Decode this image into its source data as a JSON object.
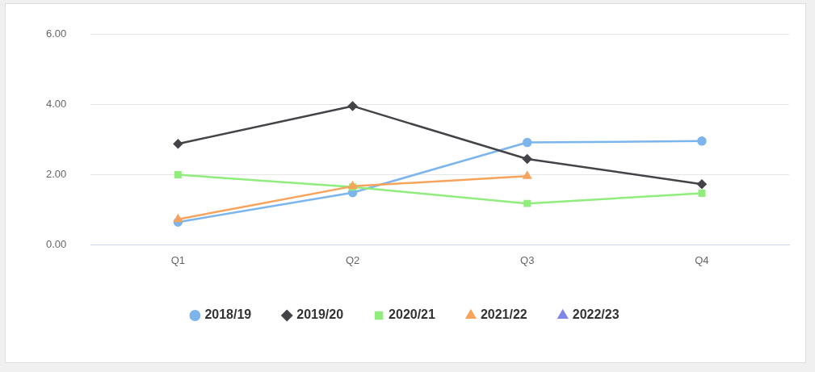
{
  "chart_data": {
    "type": "line",
    "categories": [
      "Q1",
      "Q2",
      "Q3",
      "Q4"
    ],
    "series": [
      {
        "name": "2018/19",
        "color": "#7cb5ec",
        "marker": "circle",
        "values": [
          0.65,
          1.49,
          2.92,
          2.96
        ]
      },
      {
        "name": "2019/20",
        "color": "#434348",
        "marker": "diamond",
        "values": [
          2.88,
          3.96,
          2.45,
          1.73
        ]
      },
      {
        "name": "2020/21",
        "color": "#90ed7d",
        "marker": "square",
        "values": [
          2.0,
          1.65,
          1.18,
          1.47
        ]
      },
      {
        "name": "2021/22",
        "color": "#f7a35c",
        "marker": "triangle",
        "values": [
          0.73,
          1.67,
          1.96,
          null
        ]
      },
      {
        "name": "2022/23",
        "color": "#8085e9",
        "marker": "triangle",
        "values": [
          null,
          null,
          null,
          null
        ]
      }
    ],
    "ylim": [
      0,
      6
    ],
    "yticks": [
      {
        "value": 0,
        "label": "0.00"
      },
      {
        "value": 2,
        "label": "2.00"
      },
      {
        "value": 4,
        "label": "4.00"
      },
      {
        "value": 6,
        "label": "6.00"
      }
    ],
    "grid": "y",
    "legend": "bottom",
    "line_style": "solid"
  }
}
